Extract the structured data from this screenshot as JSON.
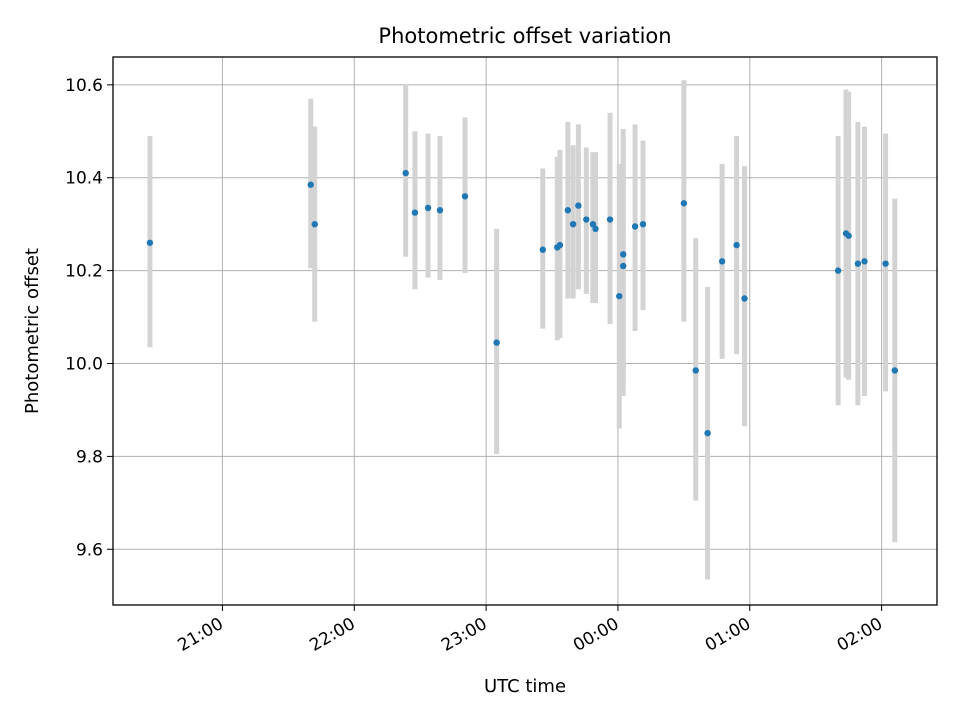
{
  "chart_data": {
    "type": "scatter",
    "title": "Photometric offset variation",
    "xlabel": "UTC time",
    "ylabel": "Photometric offset",
    "x_unit": "hours (UTC; values >24 are after midnight)",
    "xlim": [
      20.17,
      26.42
    ],
    "ylim": [
      9.48,
      10.66
    ],
    "x_ticks": [
      {
        "value": 21,
        "label": "21:00"
      },
      {
        "value": 22,
        "label": "22:00"
      },
      {
        "value": 23,
        "label": "23:00"
      },
      {
        "value": 24,
        "label": "00:00"
      },
      {
        "value": 25,
        "label": "01:00"
      },
      {
        "value": 26,
        "label": "02:00"
      }
    ],
    "y_ticks": [
      {
        "value": 9.6,
        "label": "9.6"
      },
      {
        "value": 9.8,
        "label": "9.8"
      },
      {
        "value": 10.0,
        "label": "10.0"
      },
      {
        "value": 10.2,
        "label": "10.2"
      },
      {
        "value": 10.4,
        "label": "10.4"
      },
      {
        "value": 10.6,
        "label": "10.6"
      }
    ],
    "grid": true,
    "marker_color": "#1f77b4",
    "errorbar_color": "#d3d3d3",
    "points": [
      {
        "x": 20.45,
        "y": 10.26,
        "err_low": 10.035,
        "err_high": 10.49
      },
      {
        "x": 21.67,
        "y": 10.385,
        "err_low": 10.205,
        "err_high": 10.57
      },
      {
        "x": 21.7,
        "y": 10.3,
        "err_low": 10.09,
        "err_high": 10.51
      },
      {
        "x": 22.39,
        "y": 10.41,
        "err_low": 10.23,
        "err_high": 10.6
      },
      {
        "x": 22.46,
        "y": 10.325,
        "err_low": 10.16,
        "err_high": 10.5
      },
      {
        "x": 22.56,
        "y": 10.335,
        "err_low": 10.185,
        "err_high": 10.495
      },
      {
        "x": 22.65,
        "y": 10.33,
        "err_low": 10.18,
        "err_high": 10.49
      },
      {
        "x": 22.84,
        "y": 10.36,
        "err_low": 10.195,
        "err_high": 10.53
      },
      {
        "x": 23.08,
        "y": 10.045,
        "err_low": 9.805,
        "err_high": 10.29
      },
      {
        "x": 23.43,
        "y": 10.245,
        "err_low": 10.075,
        "err_high": 10.42
      },
      {
        "x": 23.54,
        "y": 10.25,
        "err_low": 10.05,
        "err_high": 10.445
      },
      {
        "x": 23.56,
        "y": 10.255,
        "err_low": 10.055,
        "err_high": 10.46
      },
      {
        "x": 23.62,
        "y": 10.33,
        "err_low": 10.14,
        "err_high": 10.52
      },
      {
        "x": 23.66,
        "y": 10.3,
        "err_low": 10.14,
        "err_high": 10.47
      },
      {
        "x": 23.7,
        "y": 10.34,
        "err_low": 10.16,
        "err_high": 10.515
      },
      {
        "x": 23.76,
        "y": 10.31,
        "err_low": 10.15,
        "err_high": 10.465
      },
      {
        "x": 23.81,
        "y": 10.3,
        "err_low": 10.13,
        "err_high": 10.455
      },
      {
        "x": 23.83,
        "y": 10.29,
        "err_low": 10.13,
        "err_high": 10.455
      },
      {
        "x": 23.94,
        "y": 10.31,
        "err_low": 10.085,
        "err_high": 10.54
      },
      {
        "x": 24.01,
        "y": 10.145,
        "err_low": 9.86,
        "err_high": 10.43
      },
      {
        "x": 24.04,
        "y": 10.21,
        "err_low": 9.93,
        "err_high": 10.49
      },
      {
        "x": 24.04,
        "y": 10.235,
        "err_low": 9.95,
        "err_high": 10.505
      },
      {
        "x": 24.13,
        "y": 10.295,
        "err_low": 10.07,
        "err_high": 10.515
      },
      {
        "x": 24.19,
        "y": 10.3,
        "err_low": 10.115,
        "err_high": 10.48
      },
      {
        "x": 24.5,
        "y": 10.345,
        "err_low": 10.09,
        "err_high": 10.61
      },
      {
        "x": 24.59,
        "y": 9.985,
        "err_low": 9.705,
        "err_high": 10.27
      },
      {
        "x": 24.68,
        "y": 9.85,
        "err_low": 9.535,
        "err_high": 10.165
      },
      {
        "x": 24.79,
        "y": 10.22,
        "err_low": 10.01,
        "err_high": 10.43
      },
      {
        "x": 24.9,
        "y": 10.255,
        "err_low": 10.02,
        "err_high": 10.49
      },
      {
        "x": 24.96,
        "y": 10.14,
        "err_low": 9.865,
        "err_high": 10.425
      },
      {
        "x": 25.67,
        "y": 10.2,
        "err_low": 9.91,
        "err_high": 10.49
      },
      {
        "x": 25.73,
        "y": 10.28,
        "err_low": 9.97,
        "err_high": 10.59
      },
      {
        "x": 25.75,
        "y": 10.275,
        "err_low": 9.965,
        "err_high": 10.585
      },
      {
        "x": 25.82,
        "y": 10.215,
        "err_low": 9.91,
        "err_high": 10.52
      },
      {
        "x": 25.87,
        "y": 10.22,
        "err_low": 9.93,
        "err_high": 10.51
      },
      {
        "x": 26.03,
        "y": 10.215,
        "err_low": 9.94,
        "err_high": 10.495
      },
      {
        "x": 26.1,
        "y": 9.985,
        "err_low": 9.615,
        "err_high": 10.355
      }
    ]
  }
}
